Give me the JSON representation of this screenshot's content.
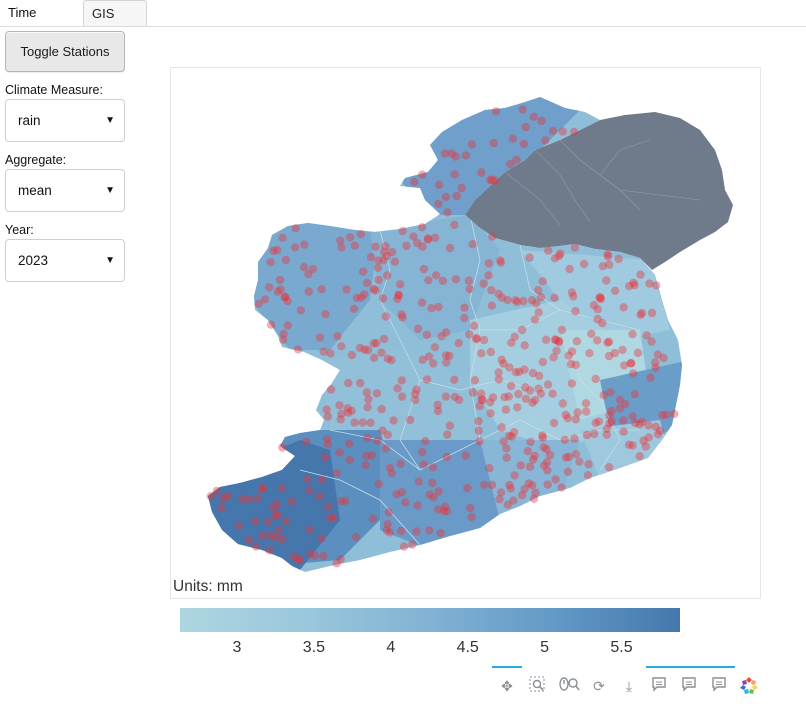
{
  "tabs": [
    {
      "label": "Time Series",
      "active": true
    },
    {
      "label": "GIS Map",
      "active": false
    }
  ],
  "controls": {
    "toggle_stations_label": "Toggle Stations",
    "climate_measure": {
      "label": "Climate Measure:",
      "value": "rain"
    },
    "aggregate": {
      "label": "Aggregate:",
      "value": "mean"
    },
    "year": {
      "label": "Year:",
      "value": "2023"
    }
  },
  "map": {
    "units_label": "Units: mm",
    "northern_ireland_color": "#6f7b8a",
    "station_color": "#e8353c"
  },
  "colorbar": {
    "ticks": [
      "3",
      "3.5",
      "4",
      "4.5",
      "5",
      "5.5"
    ],
    "tick_values": [
      3,
      3.5,
      4,
      4.5,
      5,
      5.5
    ],
    "range": [
      2.63,
      5.88
    ],
    "colors": [
      "#aed6e1",
      "#9ac7dc",
      "#82b2d4",
      "#6299c6",
      "#4478ad"
    ]
  },
  "toolbar": {
    "icons": [
      "pan-icon",
      "box-zoom-icon",
      "wheel-zoom-icon",
      "reset-icon",
      "save-icon",
      "hover-icon-1",
      "hover-icon-2",
      "hover-icon-3",
      "bokeh-logo-icon"
    ],
    "active_color": "#26aae1"
  }
}
